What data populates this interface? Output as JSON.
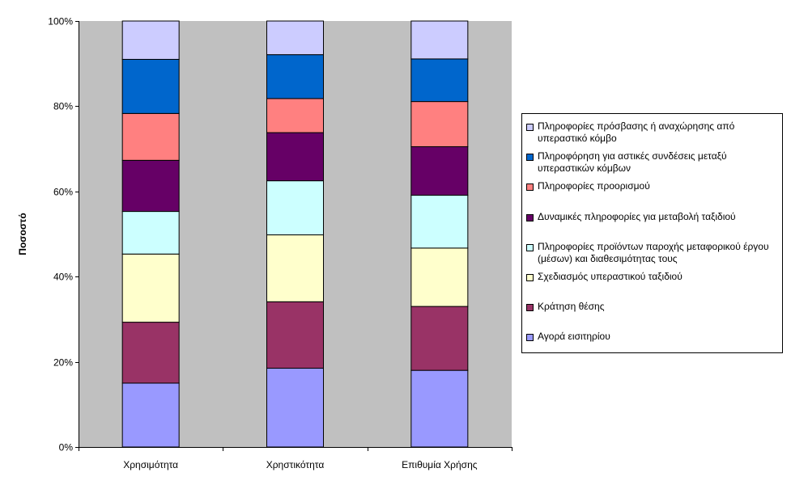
{
  "chart_data": {
    "type": "bar",
    "stacked": "percent",
    "categories": [
      "Χρησιμότητα",
      "Χρηστικότητα",
      "Επιθυμία Χρήσης"
    ],
    "series": [
      {
        "name": "Αγορά εισιτηρίου",
        "color": "#9999ff",
        "values": [
          15,
          18.5,
          18
        ]
      },
      {
        "name": "Κράτηση θέσης",
        "color": "#993366",
        "values": [
          14.3,
          15.6,
          15
        ]
      },
      {
        "name": "Σχεδιασμός υπεραστικού ταξιδιού",
        "color": "#ffffcc",
        "values": [
          16,
          15.7,
          13.7
        ]
      },
      {
        "name": "Πληροφορίες προϊόντων παροχής μεταφορικού έργου (μέσων) και διαθεσιμότητας τους",
        "color": "#ccffff",
        "values": [
          10,
          12.7,
          12.4
        ]
      },
      {
        "name": "Δυναμικές πληροφορίες για μεταβολή ταξιδιού",
        "color": "#660066",
        "values": [
          12,
          11.3,
          11.4
        ]
      },
      {
        "name": "Πληροφορίες προορισμού",
        "color": "#ff8080",
        "values": [
          11,
          8,
          10.6
        ]
      },
      {
        "name": "Πληροφόρηση για αστικές συνδέσεις μεταξύ υπεραστικών κόμβων",
        "color": "#0066cc",
        "values": [
          12.7,
          10.3,
          10
        ]
      },
      {
        "name": "Πληροφορίες πρόσβασης ή αναχώρησης από υπεραστικό κόμβο",
        "color": "#ccccff",
        "values": [
          9,
          7.9,
          8.9
        ]
      }
    ],
    "yticks": [
      "0%",
      "20%",
      "40%",
      "60%",
      "80%",
      "100%"
    ],
    "ylabel": "Ποσοστό",
    "xlabel": "",
    "ylim": [
      0,
      100
    ],
    "grid": false,
    "plot_background": "#c0c0c0",
    "legend_position": "right"
  }
}
